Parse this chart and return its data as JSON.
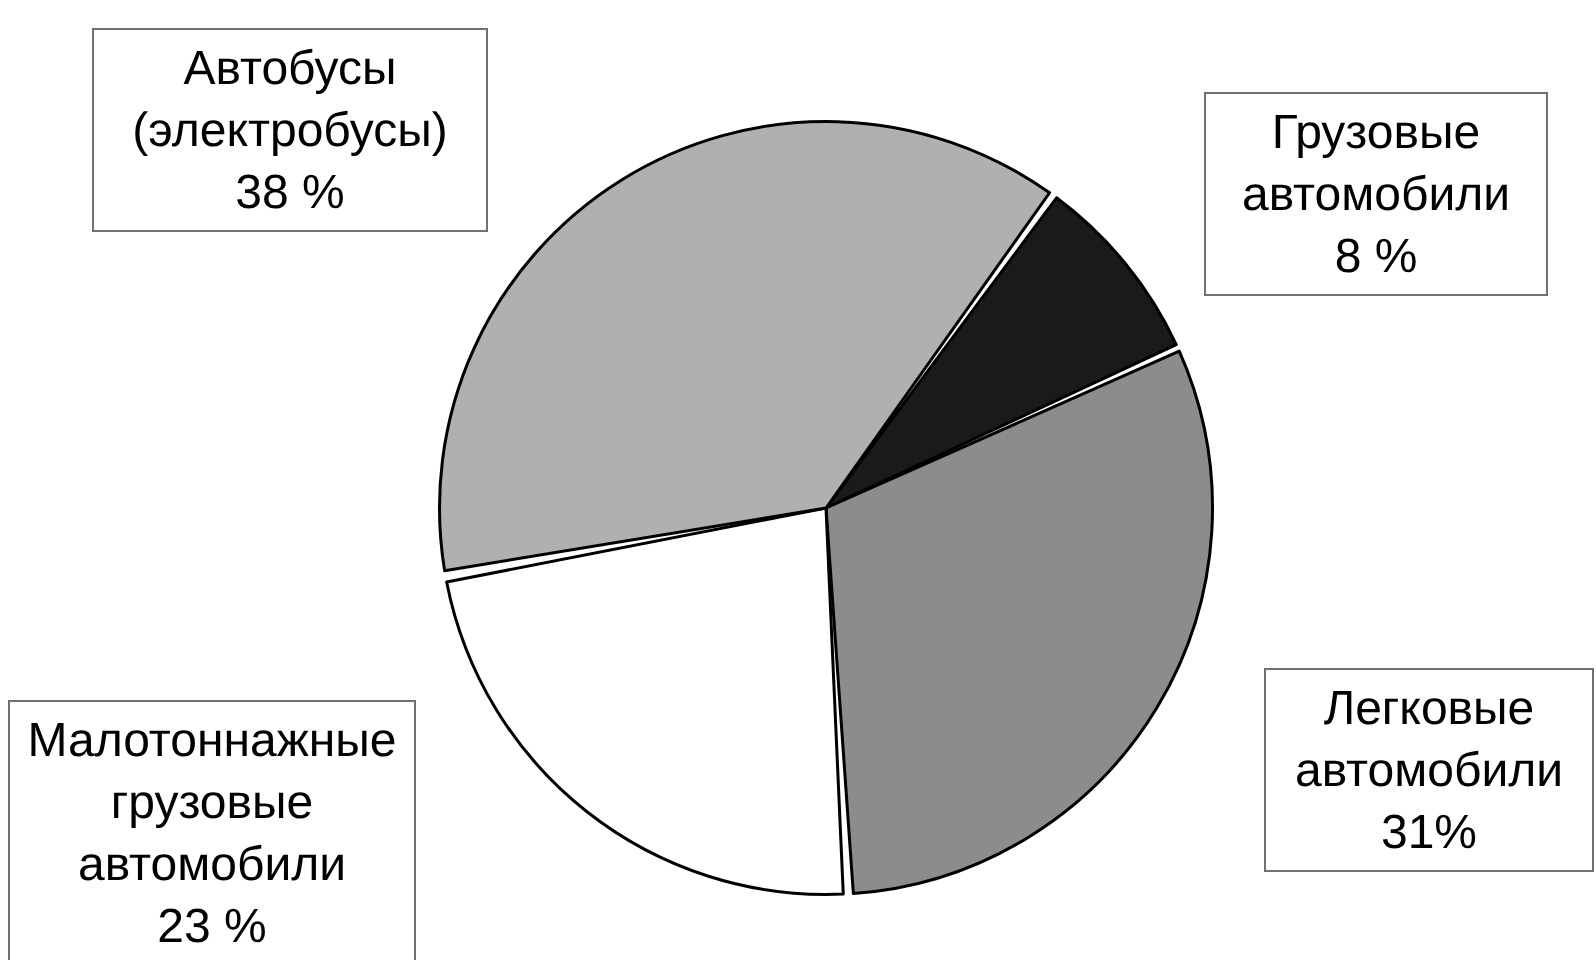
{
  "chart_data": {
    "type": "pie",
    "categories": [
      "Грузовые автомобили",
      "Легковые автомобили",
      "Малотоннажные грузовые автомобили",
      "Автобусы (электробусы)"
    ],
    "values": [
      8,
      31,
      23,
      38
    ],
    "colors": [
      "#1a1a1a",
      "#8c8c8c",
      "#ffffff",
      "#b0b0b0"
    ],
    "value_labels": [
      "8 %",
      "31%",
      "23 %",
      "38 %"
    ],
    "legend": false
  }
}
